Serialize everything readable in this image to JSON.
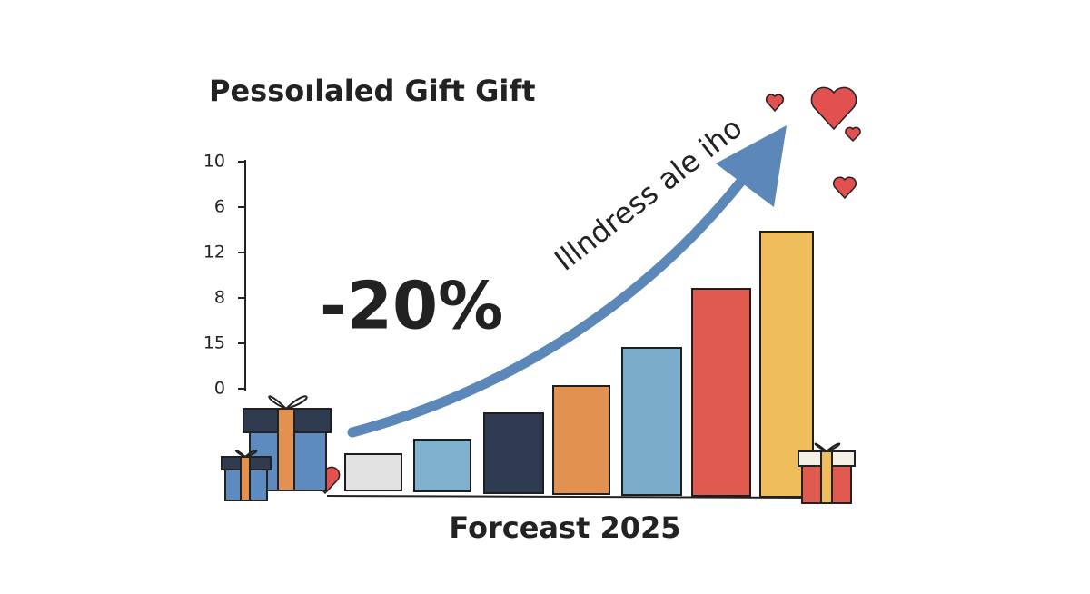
{
  "title": "Pessoılaled Gift Gift",
  "axis_labels": [
    "10",
    "6",
    "12",
    "8",
    "15",
    "0"
  ],
  "badge": "-20%",
  "arrow_label": "Illndress ale iho",
  "x_label": "Forceast 2025"
}
